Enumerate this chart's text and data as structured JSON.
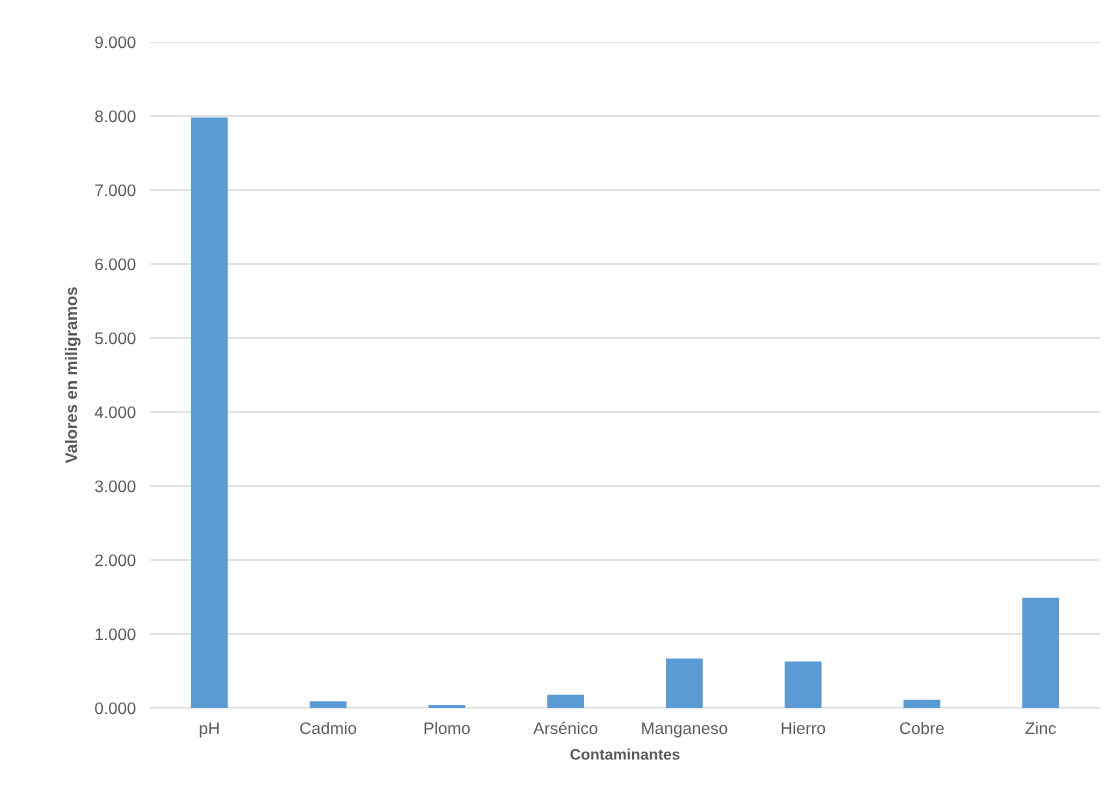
{
  "chart_data": {
    "type": "bar",
    "xlabel": "Contaminantes",
    "ylabel": "Valores en miligramos",
    "categories": [
      "pH",
      "Cadmio",
      "Plomo",
      "Arsénico",
      "Manganeso",
      "Hierro",
      "Cobre",
      "Zinc"
    ],
    "values": [
      7.98,
      0.09,
      0.04,
      0.18,
      0.67,
      0.63,
      0.11,
      1.49
    ],
    "color": "#5b9bd5",
    "ylim": [
      0,
      9
    ],
    "yticks": [
      {
        "value": 0,
        "label": "0.000"
      },
      {
        "value": 1,
        "label": "1.000"
      },
      {
        "value": 2,
        "label": "2.000"
      },
      {
        "value": 3,
        "label": "3.000"
      },
      {
        "value": 4,
        "label": "4.000"
      },
      {
        "value": 5,
        "label": "5.000"
      },
      {
        "value": 6,
        "label": "6.000"
      },
      {
        "value": 7,
        "label": "7.000"
      },
      {
        "value": 8,
        "label": "8.000"
      },
      {
        "value": 9,
        "label": "9.000"
      }
    ],
    "grid": "y"
  }
}
